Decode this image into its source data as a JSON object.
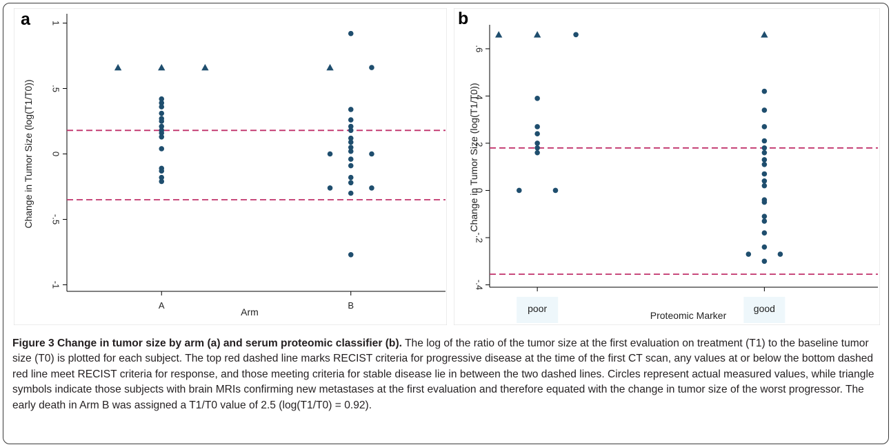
{
  "colors": {
    "point": "#1f4e6e",
    "reference_line": "#c0306a",
    "axis": "#000000",
    "category_box": "#eef7fb"
  },
  "chart_data": [
    {
      "type": "scatter",
      "panel_label": "a",
      "title": "",
      "xlabel": "Arm",
      "ylabel": "Change in Tumor Size (log(T1/T0))",
      "categories": [
        "A",
        "B"
      ],
      "x_ticks": [
        {
          "value": 1,
          "label": "A"
        },
        {
          "value": 2,
          "label": "B"
        }
      ],
      "y_ticks": [
        {
          "value": -1,
          "label": "-1"
        },
        {
          "value": -0.5,
          "label": "-.5"
        },
        {
          "value": 0,
          "label": "0"
        },
        {
          "value": 0.5,
          "label": ".5"
        },
        {
          "value": 1,
          "label": "1"
        }
      ],
      "xlim": [
        0.5,
        2.5
      ],
      "ylim": [
        -1.05,
        1.05
      ],
      "grid": false,
      "reference_lines": [
        0.18,
        -0.35
      ],
      "circles": [
        {
          "x": 1,
          "y": 0.42
        },
        {
          "x": 1,
          "y": 0.39
        },
        {
          "x": 1,
          "y": 0.36
        },
        {
          "x": 1,
          "y": 0.31
        },
        {
          "x": 1,
          "y": 0.27
        },
        {
          "x": 1,
          "y": 0.25
        },
        {
          "x": 1,
          "y": 0.21
        },
        {
          "x": 1,
          "y": 0.18
        },
        {
          "x": 1,
          "y": 0.16
        },
        {
          "x": 1,
          "y": 0.13
        },
        {
          "x": 1,
          "y": 0.04
        },
        {
          "x": 1,
          "y": -0.11
        },
        {
          "x": 1,
          "y": -0.13
        },
        {
          "x": 1,
          "y": -0.18
        },
        {
          "x": 1,
          "y": -0.21
        },
        {
          "x": 2,
          "y": 0.92
        },
        {
          "x": 2.11,
          "y": 0.66
        },
        {
          "x": 2,
          "y": 0.34
        },
        {
          "x": 2,
          "y": 0.26
        },
        {
          "x": 2,
          "y": 0.21
        },
        {
          "x": 2,
          "y": 0.18
        },
        {
          "x": 2,
          "y": 0.12
        },
        {
          "x": 2,
          "y": 0.09
        },
        {
          "x": 2,
          "y": 0.05
        },
        {
          "x": 2,
          "y": 0.02
        },
        {
          "x": 1.89,
          "y": 0.0
        },
        {
          "x": 2.11,
          "y": 0.0
        },
        {
          "x": 2,
          "y": -0.04
        },
        {
          "x": 2,
          "y": -0.09
        },
        {
          "x": 2,
          "y": -0.18
        },
        {
          "x": 2,
          "y": -0.22
        },
        {
          "x": 1.89,
          "y": -0.26
        },
        {
          "x": 2.11,
          "y": -0.26
        },
        {
          "x": 2,
          "y": -0.3
        },
        {
          "x": 2,
          "y": -0.77
        }
      ],
      "triangles": [
        {
          "x": 0.77,
          "y": 0.66
        },
        {
          "x": 1,
          "y": 0.66
        },
        {
          "x": 1.23,
          "y": 0.66
        },
        {
          "x": 1.89,
          "y": 0.66
        }
      ]
    },
    {
      "type": "scatter",
      "panel_label": "b",
      "title": "",
      "xlabel": "Proteomic Marker",
      "ylabel": "Change in Tumor Size (log(T1/T0))",
      "categories": [
        "poor",
        "good"
      ],
      "x_ticks": [
        {
          "value": 1,
          "label": "poor"
        },
        {
          "value": 2,
          "label": "good"
        }
      ],
      "y_ticks": [
        {
          "value": -0.4,
          "label": "-.4"
        },
        {
          "value": -0.2,
          "label": "-.2"
        },
        {
          "value": 0,
          "label": "0"
        },
        {
          "value": 0.2,
          "label": ".2"
        },
        {
          "value": 0.4,
          "label": ".4"
        },
        {
          "value": 0.6,
          "label": ".6"
        }
      ],
      "xlim": [
        0.79,
        2.5
      ],
      "ylim": [
        -0.41,
        0.69
      ],
      "grid": false,
      "reference_lines": [
        0.18,
        -0.355
      ],
      "circles": [
        {
          "x": 1.17,
          "y": 0.66
        },
        {
          "x": 1,
          "y": 0.39
        },
        {
          "x": 1,
          "y": 0.27
        },
        {
          "x": 1,
          "y": 0.24
        },
        {
          "x": 1,
          "y": 0.2
        },
        {
          "x": 1,
          "y": 0.18
        },
        {
          "x": 1,
          "y": 0.16
        },
        {
          "x": 0.92,
          "y": 0.0
        },
        {
          "x": 1.08,
          "y": 0.0
        },
        {
          "x": 2,
          "y": 0.42
        },
        {
          "x": 2,
          "y": 0.34
        },
        {
          "x": 2,
          "y": 0.27
        },
        {
          "x": 2,
          "y": 0.21
        },
        {
          "x": 2,
          "y": 0.18
        },
        {
          "x": 2,
          "y": 0.16
        },
        {
          "x": 2,
          "y": 0.13
        },
        {
          "x": 2,
          "y": 0.11
        },
        {
          "x": 2,
          "y": 0.07
        },
        {
          "x": 2,
          "y": 0.04
        },
        {
          "x": 2,
          "y": 0.02
        },
        {
          "x": 2,
          "y": -0.04
        },
        {
          "x": 2,
          "y": -0.05
        },
        {
          "x": 2,
          "y": -0.11
        },
        {
          "x": 2,
          "y": -0.13
        },
        {
          "x": 2,
          "y": -0.18
        },
        {
          "x": 2,
          "y": -0.24
        },
        {
          "x": 1.93,
          "y": -0.27
        },
        {
          "x": 2.07,
          "y": -0.27
        },
        {
          "x": 2,
          "y": -0.3
        }
      ],
      "triangles": [
        {
          "x": 0.83,
          "y": 0.66
        },
        {
          "x": 1,
          "y": 0.66
        },
        {
          "x": 2,
          "y": 0.66
        }
      ]
    }
  ],
  "caption": {
    "title": "Figure 3 Change in tumor size by arm (a) and serum proteomic classifier (b).",
    "text": " The log of the ratio of the tumor size at the first evaluation on treatment (T1) to the baseline tumor size (T0) is plotted for each subject. The top red dashed line marks RECIST criteria for progressive disease at the time of the first CT scan, any values at or below the bottom dashed red line meet RECIST criteria for response, and those meeting criteria for stable disease lie in between the two dashed lines. Circles represent actual measured values, while triangle symbols indicate those subjects with brain MRIs confirming new metastases at the first evaluation and therefore equated with the change in tumor size of the worst progressor. The early death in Arm B was assigned a T1/T0 value of 2.5 (log(T1/T0) = 0.92)."
  }
}
